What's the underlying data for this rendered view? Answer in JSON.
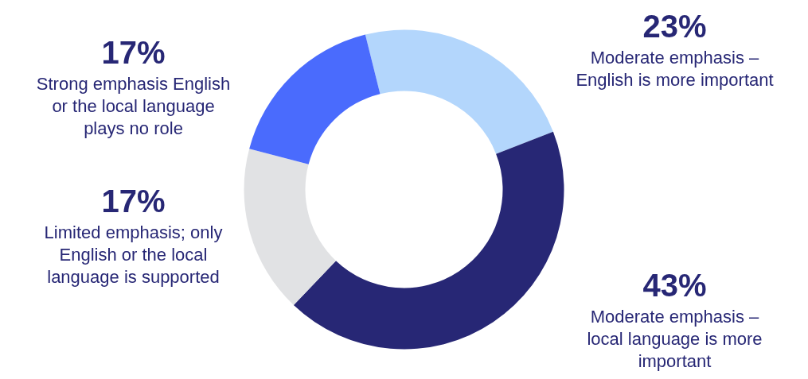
{
  "chart_data": {
    "type": "donut",
    "categories": [
      "Moderate emphasis – English is more important",
      "Moderate emphasis – local language is more important",
      "Limited emphasis; only English or the local language is supported",
      "Strong emphasis English or the local language plays no role"
    ],
    "values": [
      23,
      43,
      17,
      17
    ],
    "value_labels": [
      "23%",
      "43%",
      "17%",
      "17%"
    ],
    "colors": [
      "#b3d6fc",
      "#272775",
      "#e1e2e4",
      "#4a6bfd"
    ]
  }
}
